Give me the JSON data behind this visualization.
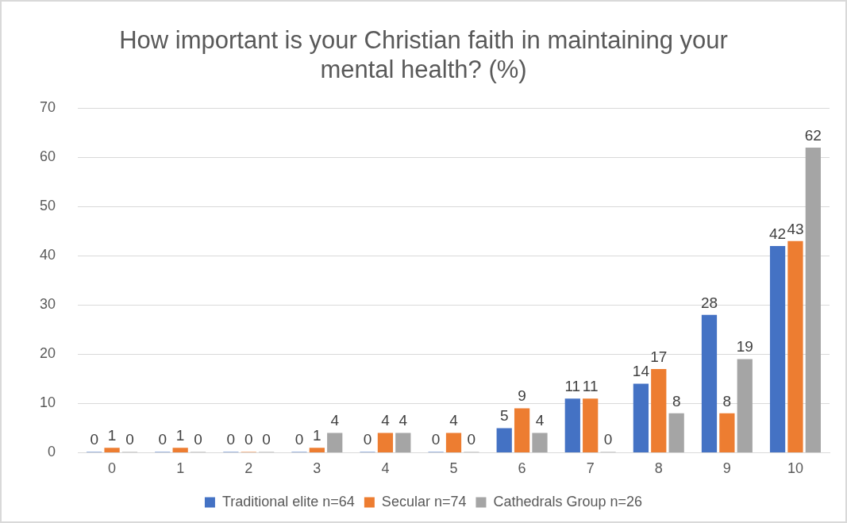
{
  "chart_data": {
    "type": "bar",
    "title": "How important is your Christian faith in maintaining your mental health? (%)",
    "categories": [
      "0",
      "1",
      "2",
      "3",
      "4",
      "5",
      "6",
      "7",
      "8",
      "9",
      "10"
    ],
    "series": [
      {
        "name": "Traditional elite n=64",
        "color": "#4472c4",
        "values": [
          0,
          0,
          0,
          0,
          0,
          0,
          5,
          11,
          14,
          28,
          42
        ]
      },
      {
        "name": "Secular n=74",
        "color": "#ed7d31",
        "values": [
          1,
          1,
          0,
          1,
          4,
          4,
          9,
          11,
          17,
          8,
          43
        ]
      },
      {
        "name": "Cathedrals Group n=26",
        "color": "#a5a5a5",
        "values": [
          0,
          0,
          0,
          4,
          4,
          0,
          4,
          0,
          8,
          19,
          62
        ]
      }
    ],
    "ylim": [
      0,
      70
    ],
    "yticks": [
      0,
      10,
      20,
      30,
      40,
      50,
      60,
      70
    ],
    "grid": "y",
    "legend": "bottom",
    "data_labels": true
  }
}
